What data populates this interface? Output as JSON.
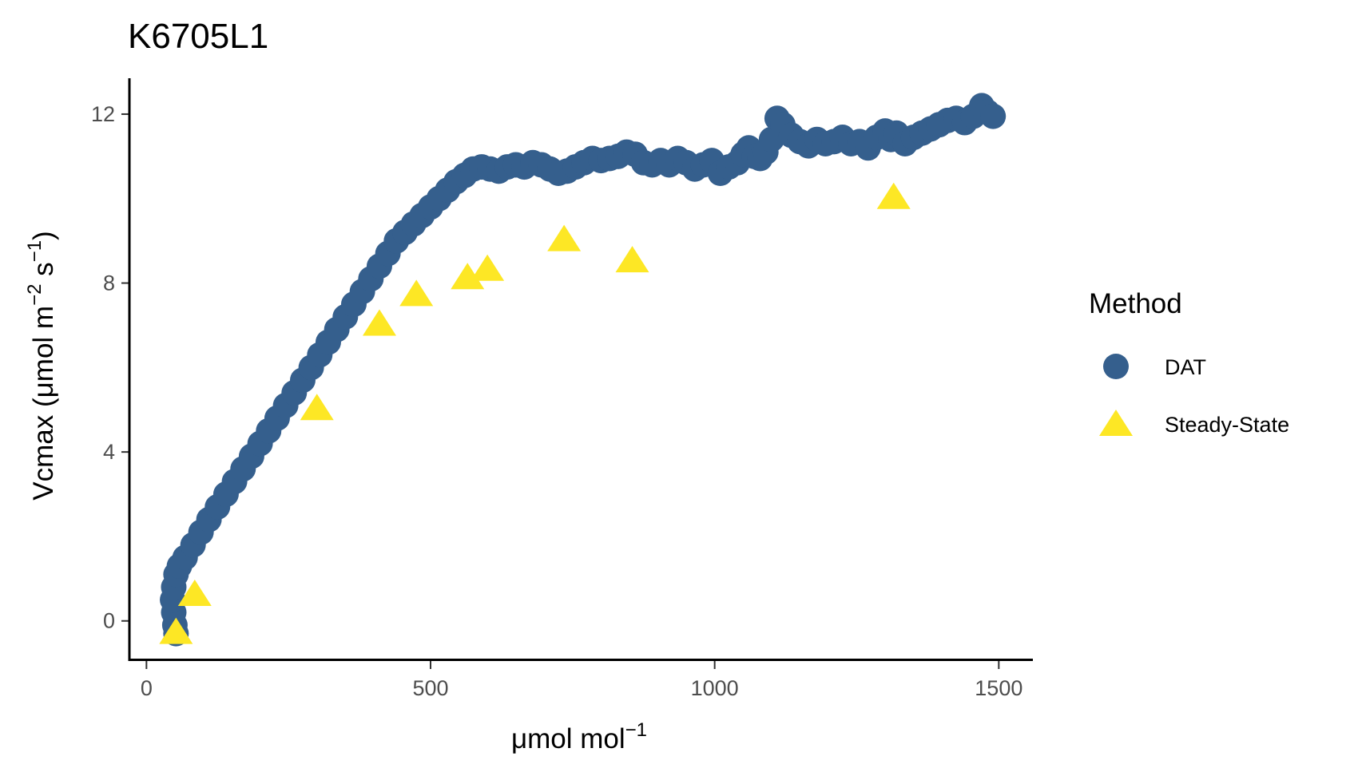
{
  "chart_data": {
    "type": "scatter",
    "title": "K6705L1",
    "xlabel": "μmol mol",
    "xlabel_sup": "−1",
    "ylabel": "Vcmax (μmol m",
    "ylabel_sup1": "−2",
    "ylabel_mid": " s",
    "ylabel_sup2": "−1",
    "ylabel_end": ")",
    "xlim": [
      -30,
      1560
    ],
    "ylim": [
      -0.95,
      12.85
    ],
    "xticks": [
      0,
      500,
      1000,
      1500
    ],
    "yticks": [
      0,
      4,
      8,
      12
    ],
    "grid": false,
    "legend": {
      "title": "Method",
      "position": "right"
    },
    "series": [
      {
        "name": "DAT",
        "marker": "circle",
        "color": "#355F8D",
        "points": [
          [
            52,
            -0.3
          ],
          [
            50,
            -0.1
          ],
          [
            48,
            0.2
          ],
          [
            46,
            0.5
          ],
          [
            48,
            0.8
          ],
          [
            52,
            1.1
          ],
          [
            58,
            1.3
          ],
          [
            68,
            1.5
          ],
          [
            82,
            1.8
          ],
          [
            96,
            2.1
          ],
          [
            110,
            2.4
          ],
          [
            125,
            2.7
          ],
          [
            140,
            3.0
          ],
          [
            155,
            3.3
          ],
          [
            170,
            3.6
          ],
          [
            185,
            3.9
          ],
          [
            200,
            4.2
          ],
          [
            215,
            4.5
          ],
          [
            230,
            4.8
          ],
          [
            245,
            5.1
          ],
          [
            260,
            5.4
          ],
          [
            275,
            5.7
          ],
          [
            290,
            6.0
          ],
          [
            305,
            6.3
          ],
          [
            320,
            6.6
          ],
          [
            335,
            6.9
          ],
          [
            350,
            7.2
          ],
          [
            365,
            7.5
          ],
          [
            380,
            7.8
          ],
          [
            395,
            8.1
          ],
          [
            410,
            8.4
          ],
          [
            425,
            8.7
          ],
          [
            440,
            9.0
          ],
          [
            455,
            9.2
          ],
          [
            470,
            9.4
          ],
          [
            485,
            9.6
          ],
          [
            500,
            9.8
          ],
          [
            515,
            10.0
          ],
          [
            530,
            10.2
          ],
          [
            545,
            10.4
          ],
          [
            560,
            10.55
          ],
          [
            575,
            10.7
          ],
          [
            590,
            10.75
          ],
          [
            605,
            10.7
          ],
          [
            620,
            10.65
          ],
          [
            635,
            10.75
          ],
          [
            650,
            10.8
          ],
          [
            665,
            10.75
          ],
          [
            680,
            10.85
          ],
          [
            695,
            10.8
          ],
          [
            710,
            10.7
          ],
          [
            725,
            10.6
          ],
          [
            740,
            10.65
          ],
          [
            755,
            10.75
          ],
          [
            770,
            10.85
          ],
          [
            785,
            10.95
          ],
          [
            800,
            10.9
          ],
          [
            815,
            10.95
          ],
          [
            830,
            11.0
          ],
          [
            845,
            11.1
          ],
          [
            860,
            11.05
          ],
          [
            875,
            10.85
          ],
          [
            890,
            10.8
          ],
          [
            905,
            10.9
          ],
          [
            920,
            10.8
          ],
          [
            935,
            10.95
          ],
          [
            950,
            10.85
          ],
          [
            965,
            10.7
          ],
          [
            980,
            10.8
          ],
          [
            995,
            10.9
          ],
          [
            1010,
            10.6
          ],
          [
            1025,
            10.75
          ],
          [
            1040,
            10.85
          ],
          [
            1050,
            11.05
          ],
          [
            1060,
            11.2
          ],
          [
            1070,
            11.0
          ],
          [
            1080,
            10.95
          ],
          [
            1090,
            11.1
          ],
          [
            1100,
            11.4
          ],
          [
            1110,
            11.9
          ],
          [
            1120,
            11.75
          ],
          [
            1135,
            11.5
          ],
          [
            1150,
            11.35
          ],
          [
            1165,
            11.25
          ],
          [
            1180,
            11.4
          ],
          [
            1195,
            11.3
          ],
          [
            1210,
            11.35
          ],
          [
            1225,
            11.45
          ],
          [
            1240,
            11.3
          ],
          [
            1255,
            11.35
          ],
          [
            1270,
            11.2
          ],
          [
            1285,
            11.45
          ],
          [
            1300,
            11.6
          ],
          [
            1310,
            11.4
          ],
          [
            1320,
            11.55
          ],
          [
            1335,
            11.3
          ],
          [
            1350,
            11.45
          ],
          [
            1365,
            11.55
          ],
          [
            1380,
            11.65
          ],
          [
            1395,
            11.75
          ],
          [
            1410,
            11.85
          ],
          [
            1425,
            11.9
          ],
          [
            1440,
            11.8
          ],
          [
            1455,
            11.95
          ],
          [
            1470,
            12.2
          ],
          [
            1480,
            12.05
          ],
          [
            1490,
            11.95
          ]
        ]
      },
      {
        "name": "Steady-State",
        "marker": "triangle",
        "color": "#FDE725",
        "points": [
          [
            52,
            -0.3
          ],
          [
            85,
            0.6
          ],
          [
            300,
            5.0
          ],
          [
            410,
            7.0
          ],
          [
            475,
            7.7
          ],
          [
            565,
            8.1
          ],
          [
            600,
            8.3
          ],
          [
            735,
            9.0
          ],
          [
            855,
            8.5
          ],
          [
            1315,
            10.0
          ]
        ]
      }
    ]
  }
}
